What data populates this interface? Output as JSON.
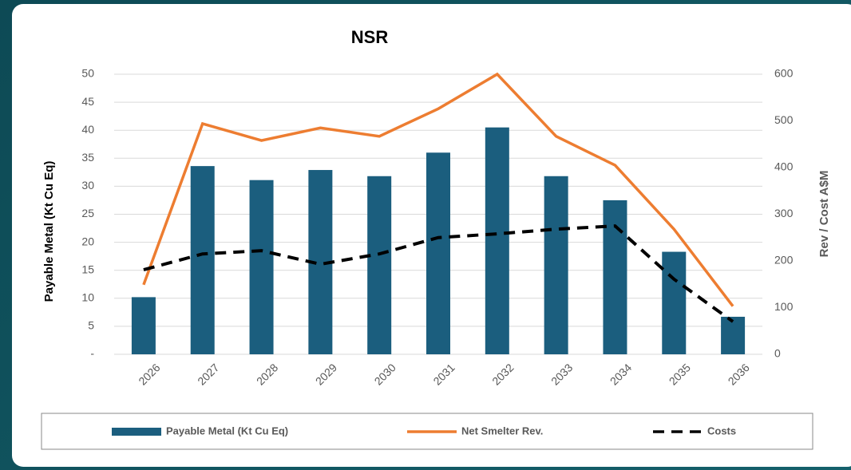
{
  "chart_data": {
    "type": "bar_line",
    "title": "NSR",
    "categories": [
      "2026",
      "2027",
      "2028",
      "2029",
      "2030",
      "2031",
      "2032",
      "2033",
      "2034",
      "2035",
      "2036"
    ],
    "series": [
      {
        "name": "Payable Metal (Kt Cu Eq)",
        "type": "bar",
        "color": "#1b5e7e",
        "axis": "y",
        "values": [
          10.2,
          33.6,
          31.1,
          32.9,
          31.8,
          36.0,
          40.5,
          31.8,
          27.5,
          18.3,
          6.7
        ]
      },
      {
        "name": "Net Smelter Rev.",
        "type": "line",
        "color": "#ed7d31",
        "axis": "y2",
        "values": [
          149,
          494,
          458,
          485,
          467,
          526,
          600,
          467,
          405,
          268,
          103
        ]
      },
      {
        "name": "Costs",
        "type": "line",
        "color": "#000000",
        "dashed": true,
        "axis": "y2",
        "values": [
          181,
          215,
          222,
          193,
          215,
          250,
          258,
          268,
          275,
          161,
          70
        ]
      }
    ],
    "ylabel": "Payable Metal (Kt Cu Eq)",
    "y2label": "Rev / Cost A$M",
    "ylim": [
      0,
      50
    ],
    "yticks": [
      {
        "value": 0,
        "label": "-"
      },
      5,
      10,
      15,
      20,
      25,
      30,
      35,
      40,
      45,
      50
    ],
    "y2lim": [
      0,
      600
    ],
    "y2ticks": [
      0,
      100,
      200,
      300,
      400,
      500,
      600
    ],
    "grid": true,
    "legend": "bottom"
  }
}
